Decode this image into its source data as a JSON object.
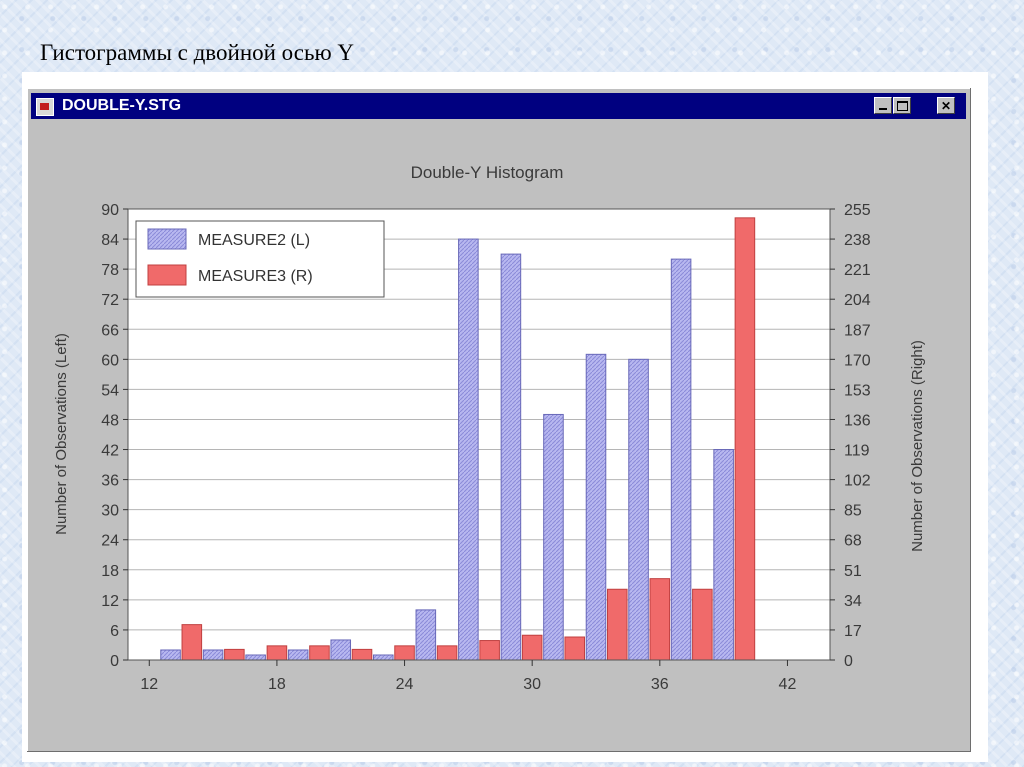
{
  "slide": {
    "title": "Гистограммы с двойной осью Y"
  },
  "window": {
    "title": "DOUBLE-Y.STG",
    "minimize_icon": "minimize-icon",
    "maximize_icon": "maximize-icon",
    "close_label": "✕"
  },
  "chart_data": {
    "type": "bar",
    "title": "Double-Y Histogram",
    "ylabel_left": "Number of Observations (Left)",
    "ylabel_right": "Number of Observations (Right)",
    "xlim": [
      11,
      44
    ],
    "ylim_left": [
      0,
      90
    ],
    "ylim_right": [
      0,
      255
    ],
    "x_ticks": [
      12,
      18,
      24,
      30,
      36,
      42
    ],
    "y_ticks_left": [
      0,
      6,
      12,
      18,
      24,
      30,
      36,
      42,
      48,
      54,
      60,
      66,
      72,
      78,
      84,
      90
    ],
    "y_ticks_right": [
      0,
      17,
      34,
      51,
      68,
      85,
      102,
      119,
      136,
      153,
      170,
      187,
      204,
      221,
      238,
      255
    ],
    "grid": true,
    "legend_position": "top-left",
    "series": [
      {
        "name": "MEASURE2 (L)",
        "axis": "left",
        "color": "#b8b8f0",
        "x": [
          13,
          15,
          17,
          19,
          21,
          23,
          25,
          27,
          29,
          31,
          33,
          35,
          37,
          39,
          41
        ],
        "values": [
          2,
          2,
          1,
          2,
          4,
          1,
          10,
          84,
          81,
          49,
          61,
          60,
          80,
          42,
          0
        ]
      },
      {
        "name": "MEASURE3 (R)",
        "axis": "right",
        "color": "#f06a6a",
        "x": [
          14,
          16,
          18,
          20,
          22,
          24,
          26,
          28,
          30,
          32,
          34,
          36,
          38,
          40,
          42
        ],
        "values": [
          20,
          6,
          8,
          8,
          6,
          8,
          8,
          11,
          14,
          13,
          40,
          46,
          40,
          250,
          0
        ]
      }
    ]
  }
}
